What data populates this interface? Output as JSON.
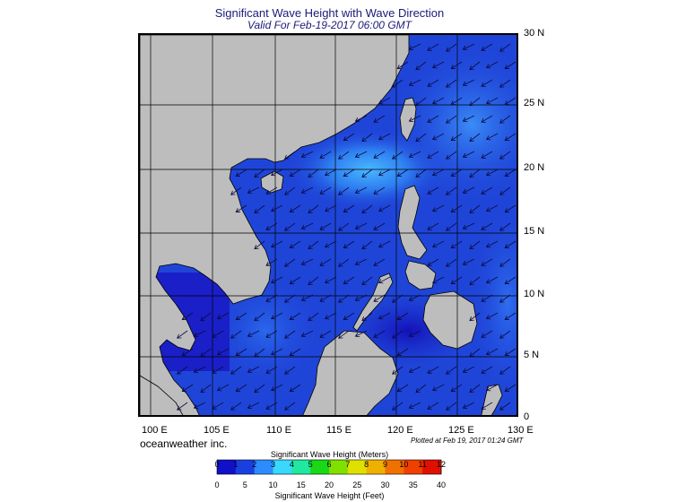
{
  "header": {
    "title": "Significant Wave Height with Wave Direction",
    "subtitle": "Valid For Feb-19-2017 06:00 GMT"
  },
  "map": {
    "lat_labels": [
      "30 N",
      "25 N",
      "20 N",
      "15 N",
      "10 N",
      "5 N",
      "0"
    ],
    "lon_labels": [
      "100 E",
      "105 E",
      "110 E",
      "115 E",
      "120 E",
      "125 E",
      "130 E"
    ],
    "land_color": "#bdbdbd",
    "sea_dominant_color": "#1f45d8",
    "wave_direction": "southwest"
  },
  "footer": {
    "brand": "oceanweather inc.",
    "plotted": "Plotted at Feb 19, 2017 01:24 GMT"
  },
  "legend": {
    "title_meters": "Significant Wave Height (Meters)",
    "title_feet": "Significant Wave Height (Feet)",
    "meters_ticks": [
      "0",
      "1",
      "2",
      "3",
      "4",
      "5",
      "6",
      "7",
      "8",
      "9",
      "10",
      "11",
      "12"
    ],
    "feet_ticks": [
      "0",
      "5",
      "10",
      "15",
      "20",
      "25",
      "30",
      "35",
      "40"
    ],
    "colors": [
      "#1010c8",
      "#1a3fe0",
      "#2c8cff",
      "#38d8ff",
      "#20e8a0",
      "#18d818",
      "#80e000",
      "#e0e000",
      "#f0b000",
      "#f07000",
      "#f04000",
      "#e01000"
    ]
  }
}
